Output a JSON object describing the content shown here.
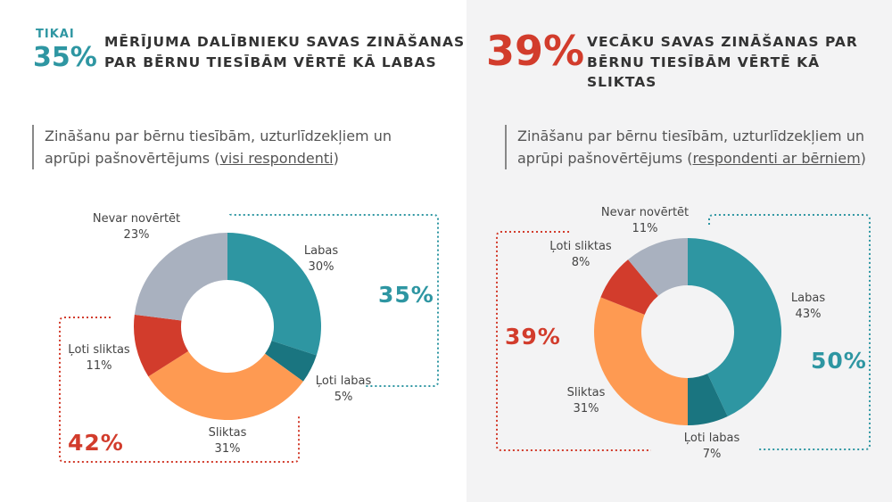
{
  "left": {
    "header": {
      "small": "TIKAI",
      "big": "35%",
      "line1": "MĒRĪJUMA DALĪBNIEKU SAVAS ZINĀŠANAS",
      "line2": "PAR BĒRNU TIESĪBĀM VĒRTĒ KĀ LABAS"
    },
    "subtitle": {
      "line1": "Zināšanu par bērnu tiesībām, uzturlīdzekļiem un",
      "line2_prefix": "aprūpi pašnovērtējums (",
      "line2_link": "visi respondenti",
      "line2_suffix": ")"
    },
    "bracket_good": "35%",
    "bracket_bad": "42%"
  },
  "right": {
    "header": {
      "big": "39%",
      "line1": "VECĀKU SAVAS ZINĀŠANAS PAR",
      "line2": "BĒRNU TIESĪBĀM VĒRTĒ KĀ SLIKTAS"
    },
    "subtitle": {
      "line1": "Zināšanu par bērnu tiesībām, uzturlīdzekļiem un",
      "line2_prefix": "aprūpi pašnovērtējums (",
      "line2_link": "respondenti ar bērniem",
      "line2_suffix": ")"
    },
    "bracket_bad": "39%",
    "bracket_good": "50%"
  },
  "colors": {
    "teal": "#2e96a2",
    "dark_teal": "#1a7580",
    "orange": "#fe9a52",
    "red": "#d23c2c",
    "gray": "#a9b1bf",
    "dotted_teal": "#2e96a2",
    "dotted_red": "#d23c2c"
  },
  "chart_data": [
    {
      "type": "pie",
      "variant": "donut",
      "slices": [
        {
          "label": "Labas",
          "value": 30,
          "value_label": "30%",
          "color": "#2e96a2"
        },
        {
          "label": "Ļoti labas",
          "value": 5,
          "value_label": "5%",
          "color": "#1a7580"
        },
        {
          "label": "Sliktas",
          "value": 31,
          "value_label": "31%",
          "color": "#fe9a52"
        },
        {
          "label": "Ļoti sliktas",
          "value": 11,
          "value_label": "11%",
          "color": "#d23c2c"
        },
        {
          "label": "Nevar novērtēt",
          "value": 23,
          "value_label": "23%",
          "color": "#a9b1bf"
        }
      ]
    },
    {
      "type": "pie",
      "variant": "donut",
      "slices": [
        {
          "label": "Labas",
          "value": 43,
          "value_label": "43%",
          "color": "#2e96a2"
        },
        {
          "label": "Ļoti labas",
          "value": 7,
          "value_label": "7%",
          "color": "#1a7580"
        },
        {
          "label": "Sliktas",
          "value": 31,
          "value_label": "31%",
          "color": "#fe9a52"
        },
        {
          "label": "Ļoti sliktas",
          "value": 8,
          "value_label": "8%",
          "color": "#d23c2c"
        },
        {
          "label": "Nevar novērtēt",
          "value": 11,
          "value_label": "11%",
          "color": "#a9b1bf"
        }
      ]
    }
  ]
}
